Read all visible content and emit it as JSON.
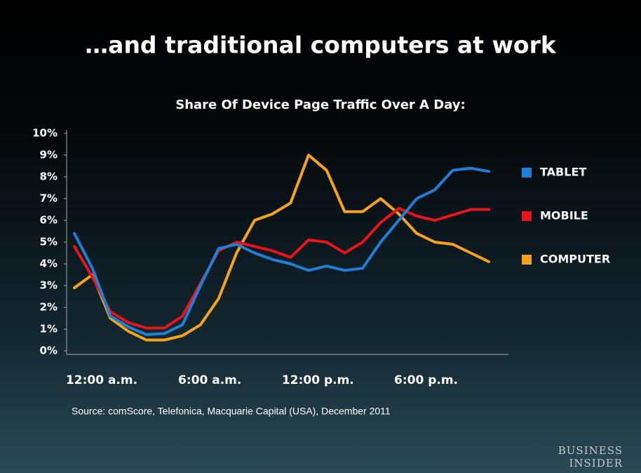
{
  "chart_data": {
    "type": "line",
    "title": "…and traditional computers at work",
    "subtitle": "Share Of Device Page Traffic Over A Day:",
    "source": "Source: comScore, Telefonica, Macquarie Capital (USA), December 2011",
    "categories": [
      "12:00 a.m.",
      null,
      null,
      null,
      null,
      null,
      "6:00 a.m.",
      null,
      null,
      null,
      null,
      null,
      "12:00 p.m.",
      null,
      null,
      null,
      null,
      null,
      "6:00 p.m.",
      null,
      null,
      null,
      null,
      null
    ],
    "series": [
      {
        "name": "TABLET",
        "color": "#1f80d8",
        "values": [
          5.4,
          3.8,
          1.6,
          1.1,
          0.75,
          0.8,
          1.2,
          3.0,
          4.7,
          4.9,
          4.5,
          4.2,
          4.0,
          3.7,
          3.9,
          3.7,
          3.8,
          5.0,
          6.0,
          7.0,
          7.4,
          8.3,
          8.4,
          8.25
        ]
      },
      {
        "name": "MOBILE",
        "color": "#e8141b",
        "values": [
          4.8,
          3.4,
          1.8,
          1.3,
          1.05,
          1.05,
          1.6,
          3.1,
          4.6,
          5.0,
          4.8,
          4.6,
          4.3,
          5.1,
          5.0,
          4.5,
          5.0,
          5.9,
          6.55,
          6.2,
          6.0,
          6.25,
          6.5,
          6.5
        ]
      },
      {
        "name": "COMPUTER",
        "color": "#f5a31c",
        "values": [
          2.9,
          3.5,
          1.5,
          0.9,
          0.5,
          0.5,
          0.7,
          1.2,
          2.4,
          4.5,
          6.0,
          6.3,
          6.8,
          9.0,
          8.3,
          6.4,
          6.4,
          7.0,
          6.3,
          5.4,
          5.0,
          4.9,
          4.5,
          4.1
        ]
      }
    ],
    "ylim": [
      0,
      10
    ],
    "yticks": [
      {
        "value": 0,
        "label": "0%"
      },
      {
        "value": 1,
        "label": "1%"
      },
      {
        "value": 2,
        "label": "2%"
      },
      {
        "value": 3,
        "label": "3%"
      },
      {
        "value": 4,
        "label": "4%"
      },
      {
        "value": 5,
        "label": "5%"
      },
      {
        "value": 6,
        "label": "6%"
      },
      {
        "value": 7,
        "label": "7%"
      },
      {
        "value": 8,
        "label": "8%"
      },
      {
        "value": 9,
        "label": "9%"
      },
      {
        "value": 10,
        "label": "10%"
      }
    ],
    "legend": "right"
  },
  "logo": [
    "BUSINESS",
    "INSIDER"
  ]
}
